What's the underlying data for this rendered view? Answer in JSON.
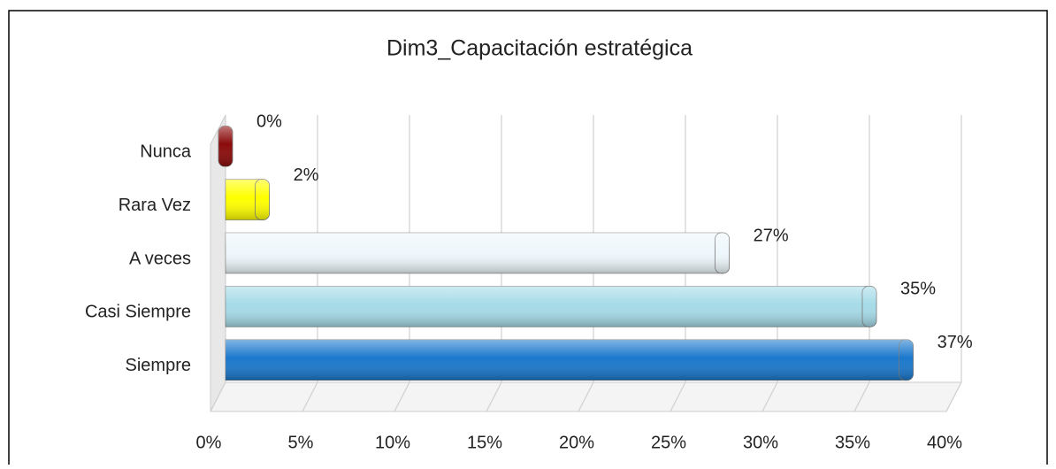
{
  "chart_data": {
    "type": "bar",
    "orientation": "horizontal",
    "title": "Dim3_Capacitación estratégica",
    "categories": [
      "Nunca",
      "Rara Vez",
      "A veces",
      "Casi Siempre",
      "Siempre"
    ],
    "values": [
      0,
      2,
      27,
      35,
      37
    ],
    "value_labels": [
      "0%",
      "2%",
      "27%",
      "35%",
      "37%"
    ],
    "colors": [
      "#8b0a0a",
      "#ffff00",
      "#eef7fb",
      "#a6dbe8",
      "#1a78cc"
    ],
    "xlim": [
      0,
      40
    ],
    "xticks": [
      {
        "value": 0,
        "label": "0%"
      },
      {
        "value": 5,
        "label": "5%"
      },
      {
        "value": 10,
        "label": "10%"
      },
      {
        "value": 15,
        "label": "15%"
      },
      {
        "value": 20,
        "label": "20%"
      },
      {
        "value": 25,
        "label": "25%"
      },
      {
        "value": 30,
        "label": "30%"
      },
      {
        "value": 35,
        "label": "35%"
      },
      {
        "value": 40,
        "label": "40%"
      }
    ],
    "grid": true
  }
}
